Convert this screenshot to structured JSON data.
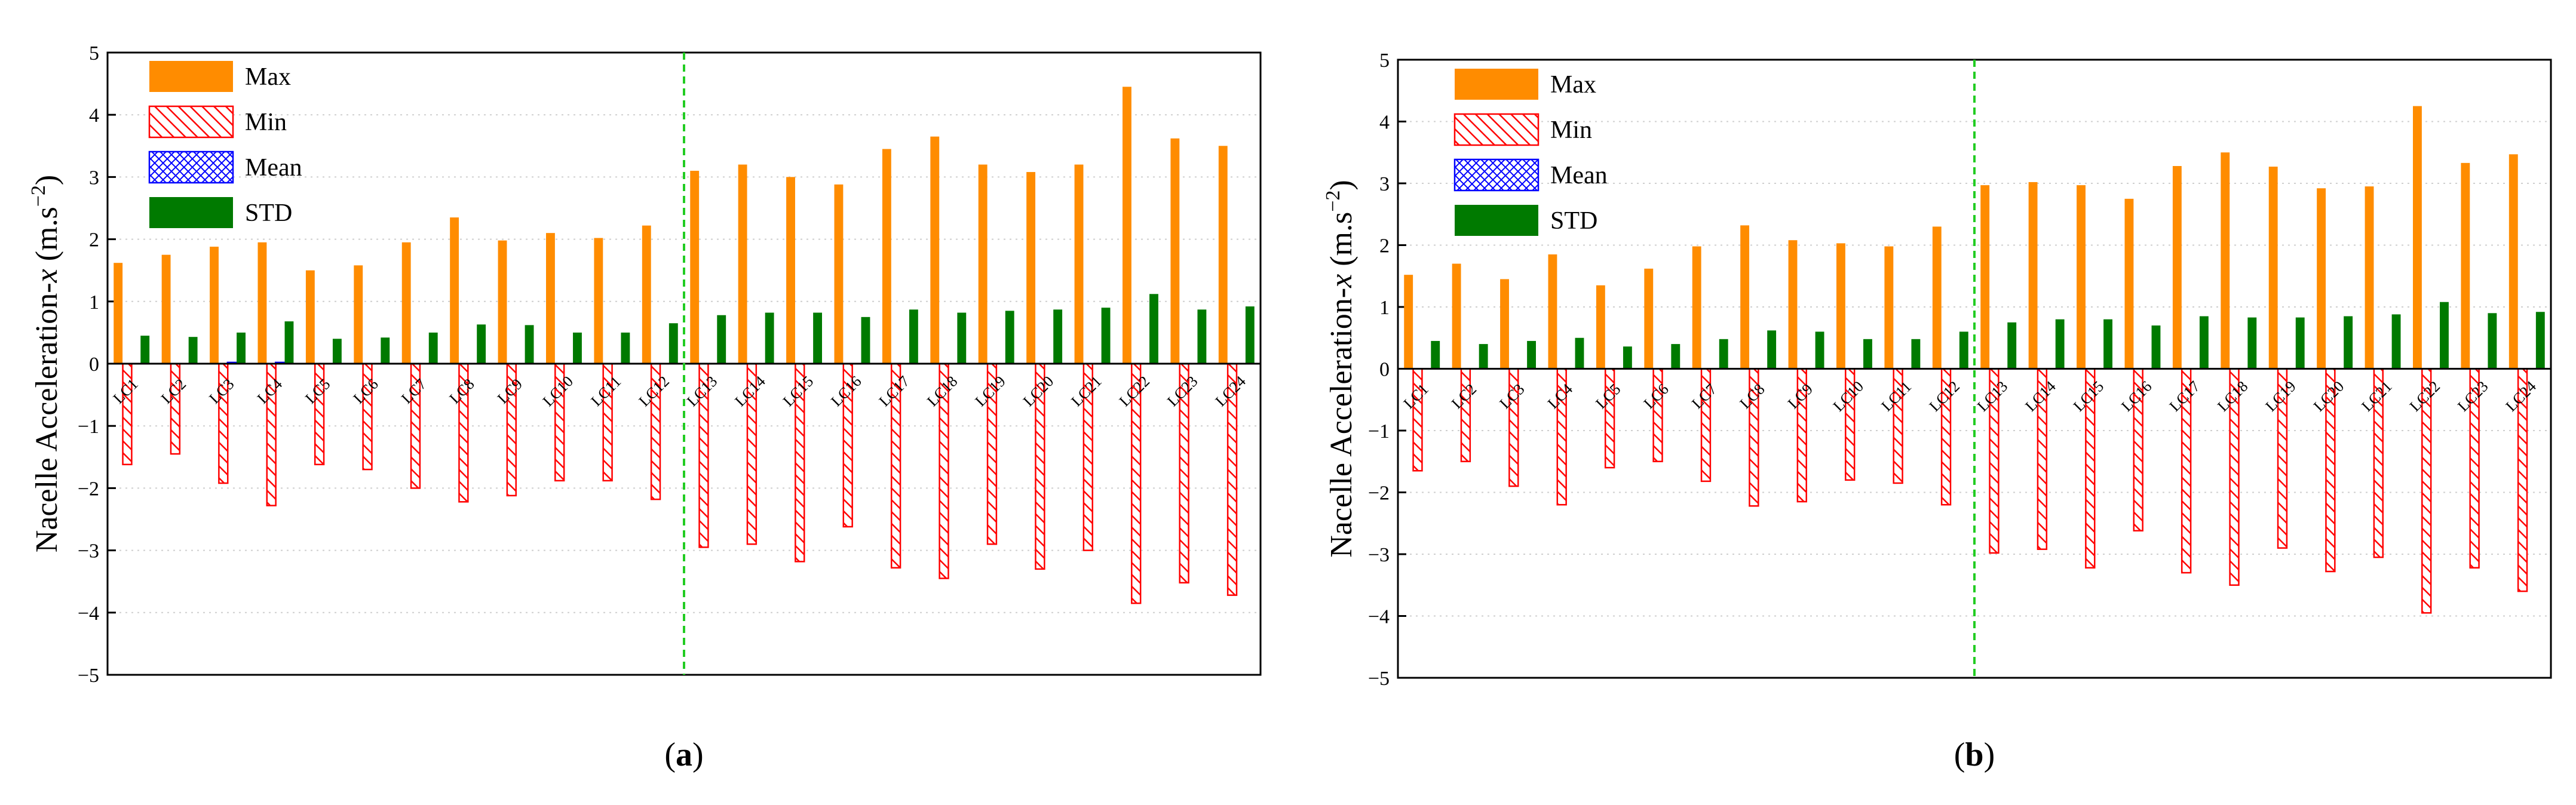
{
  "colors": {
    "max": "#ff8c00",
    "min": "#ff0000",
    "mean": "#0000ff",
    "std": "#007a00",
    "divider": "#22cc22"
  },
  "chart_data": [
    {
      "type": "bar",
      "panel_label": "a",
      "ylabel": "Nacelle Acceleration-x (m.s-2)",
      "ylabel_parts": {
        "pre": "Nacelle Acceleration-",
        "var": "x",
        "unit": " (m.s",
        "sup": "−2",
        "post": ")"
      },
      "ylim": [
        -5,
        5
      ],
      "yticks": [
        "5",
        "4",
        "3",
        "2",
        "1",
        "0",
        "−1",
        "−2",
        "−3",
        "−4",
        "−5"
      ],
      "grid": true,
      "legend": [
        "Max",
        "Min",
        "Mean",
        "STD"
      ],
      "legend_position": "top-left",
      "divider_after": "LC12",
      "categories": [
        "LC1",
        "LC2",
        "LC3",
        "LC4",
        "LC5",
        "LC6",
        "LC7",
        "LC8",
        "LC9",
        "LC10",
        "LC11",
        "LC12",
        "LC13",
        "LC14",
        "LC15",
        "LC16",
        "LC17",
        "LC18",
        "LC19",
        "LC20",
        "LC21",
        "LC22",
        "LC23",
        "LC24"
      ],
      "series": [
        {
          "name": "Max",
          "values": [
            1.62,
            1.75,
            1.88,
            1.95,
            1.5,
            1.58,
            1.95,
            2.35,
            1.98,
            2.1,
            2.02,
            2.22,
            3.1,
            3.2,
            3.0,
            2.88,
            3.45,
            3.65,
            3.2,
            3.08,
            3.2,
            4.45,
            3.62,
            3.5
          ]
        },
        {
          "name": "Min",
          "values": [
            -1.62,
            -1.45,
            -1.92,
            -2.28,
            -1.62,
            -1.7,
            -2.0,
            -2.22,
            -2.12,
            -1.88,
            -1.88,
            -2.18,
            -2.95,
            -2.9,
            -3.18,
            -2.62,
            -3.28,
            -3.45,
            -2.9,
            -3.3,
            -3.0,
            -3.85,
            -3.52,
            -3.72
          ]
        },
        {
          "name": "Mean",
          "values": [
            0.0,
            0.0,
            0.02,
            0.02,
            0.0,
            0.0,
            0.0,
            0.0,
            0.0,
            0.0,
            0.0,
            0.0,
            0.0,
            0.0,
            0.0,
            0.0,
            0.0,
            0.0,
            0.0,
            0.0,
            0.0,
            0.0,
            0.0,
            0.0
          ]
        },
        {
          "name": "STD",
          "values": [
            0.45,
            0.43,
            0.5,
            0.68,
            0.4,
            0.42,
            0.5,
            0.63,
            0.62,
            0.5,
            0.5,
            0.65,
            0.78,
            0.82,
            0.82,
            0.75,
            0.87,
            0.82,
            0.85,
            0.87,
            0.9,
            1.12,
            0.87,
            0.92
          ]
        }
      ]
    },
    {
      "type": "bar",
      "panel_label": "b",
      "ylabel": "Nacelle Acceleration-x (m.s-2)",
      "ylabel_parts": {
        "pre": "Nacelle Acceleration-",
        "var": "x",
        "unit": " (m.s",
        "sup": "−2",
        "post": ")"
      },
      "ylim": [
        -5,
        5
      ],
      "yticks": [
        "5",
        "4",
        "3",
        "2",
        "1",
        "0",
        "−1",
        "−2",
        "−3",
        "−4",
        "−5"
      ],
      "grid": true,
      "legend": [
        "Max",
        "Min",
        "Mean",
        "STD"
      ],
      "legend_position": "top-left",
      "divider_after": "LC12",
      "categories": [
        "LC1",
        "LC2",
        "LC3",
        "LC4",
        "LC5",
        "LC6",
        "LC7",
        "LC8",
        "LC9",
        "LC10",
        "LC11",
        "LC12",
        "LC13",
        "LC14",
        "LC15",
        "LC16",
        "LC17",
        "LC18",
        "LC19",
        "LC20",
        "LC21",
        "LC22",
        "LC23",
        "LC24"
      ],
      "series": [
        {
          "name": "Max",
          "values": [
            1.52,
            1.7,
            1.45,
            1.85,
            1.35,
            1.62,
            1.98,
            2.32,
            2.08,
            2.03,
            1.98,
            2.3,
            2.97,
            3.02,
            2.97,
            2.75,
            3.28,
            3.5,
            3.27,
            2.92,
            2.95,
            4.25,
            3.33,
            3.47
          ]
        },
        {
          "name": "Min",
          "values": [
            -1.65,
            -1.5,
            -1.9,
            -2.2,
            -1.6,
            -1.5,
            -1.82,
            -2.22,
            -2.15,
            -1.8,
            -1.85,
            -2.2,
            -2.98,
            -2.92,
            -3.22,
            -2.62,
            -3.3,
            -3.5,
            -2.9,
            -3.28,
            -3.05,
            -3.95,
            -3.22,
            -3.6
          ]
        },
        {
          "name": "Mean",
          "values": [
            0.0,
            0.0,
            0.0,
            0.0,
            0.0,
            0.0,
            0.0,
            0.0,
            0.0,
            0.0,
            0.0,
            0.0,
            0.0,
            0.0,
            0.0,
            0.0,
            0.0,
            0.0,
            0.0,
            0.0,
            0.0,
            0.0,
            0.0,
            0.0
          ]
        },
        {
          "name": "STD",
          "values": [
            0.45,
            0.4,
            0.45,
            0.5,
            0.36,
            0.4,
            0.48,
            0.62,
            0.6,
            0.48,
            0.48,
            0.6,
            0.75,
            0.8,
            0.8,
            0.7,
            0.85,
            0.83,
            0.83,
            0.85,
            0.88,
            1.08,
            0.9,
            0.92
          ]
        }
      ]
    }
  ]
}
